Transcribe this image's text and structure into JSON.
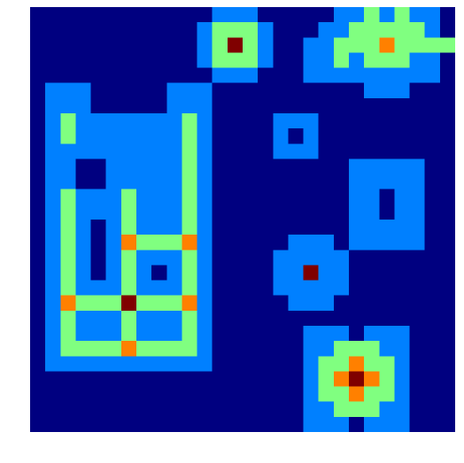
{
  "chart_data": {
    "type": "heatmap",
    "title": "",
    "xlabel": "",
    "ylabel": "",
    "colormap": "jet",
    "value_range": [
      0,
      5
    ],
    "colors": {
      "0": "#000080",
      "1": "#0080ff",
      "2": "#80ff80",
      "3": "#ff8000",
      "4": "#ff8000",
      "5": "#800000"
    },
    "grid": false,
    "axes_visible": false,
    "n_rows": 28,
    "n_cols": 28,
    "matrix": [
      [
        0,
        0,
        0,
        0,
        0,
        0,
        0,
        0,
        0,
        0,
        0,
        0,
        1,
        1,
        1,
        0,
        0,
        0,
        0,
        0,
        1,
        1,
        2,
        1,
        2,
        1,
        1,
        0
      ],
      [
        0,
        0,
        0,
        0,
        0,
        0,
        0,
        0,
        0,
        0,
        0,
        1,
        2,
        2,
        2,
        1,
        0,
        0,
        0,
        1,
        1,
        2,
        2,
        2,
        2,
        2,
        1,
        0
      ],
      [
        0,
        0,
        0,
        0,
        0,
        0,
        0,
        0,
        0,
        0,
        0,
        1,
        2,
        5,
        2,
        1,
        0,
        0,
        1,
        1,
        2,
        2,
        2,
        3,
        2,
        2,
        2,
        2
      ],
      [
        0,
        0,
        0,
        0,
        0,
        0,
        0,
        0,
        0,
        0,
        0,
        1,
        2,
        2,
        2,
        1,
        0,
        0,
        1,
        1,
        2,
        1,
        2,
        2,
        2,
        1,
        1,
        0
      ],
      [
        0,
        0,
        0,
        0,
        0,
        0,
        0,
        0,
        0,
        0,
        0,
        0,
        1,
        1,
        1,
        0,
        0,
        0,
        1,
        1,
        1,
        1,
        1,
        1,
        1,
        1,
        1,
        0
      ],
      [
        0,
        1,
        1,
        1,
        0,
        0,
        0,
        0,
        0,
        1,
        1,
        1,
        0,
        0,
        0,
        0,
        0,
        0,
        0,
        0,
        0,
        0,
        1,
        1,
        1,
        0,
        0,
        0
      ],
      [
        0,
        1,
        1,
        1,
        0,
        0,
        0,
        0,
        0,
        1,
        1,
        1,
        0,
        0,
        0,
        0,
        0,
        0,
        0,
        0,
        0,
        0,
        0,
        0,
        0,
        0,
        0,
        0
      ],
      [
        0,
        1,
        2,
        1,
        1,
        1,
        1,
        1,
        1,
        1,
        2,
        1,
        0,
        0,
        0,
        0,
        1,
        1,
        1,
        0,
        0,
        0,
        0,
        0,
        0,
        0,
        0,
        0
      ],
      [
        0,
        1,
        2,
        1,
        1,
        1,
        1,
        1,
        1,
        1,
        2,
        1,
        0,
        0,
        0,
        0,
        1,
        0,
        1,
        0,
        0,
        0,
        0,
        0,
        0,
        0,
        0,
        0
      ],
      [
        0,
        1,
        1,
        1,
        1,
        1,
        1,
        1,
        1,
        1,
        2,
        1,
        0,
        0,
        0,
        0,
        1,
        1,
        1,
        0,
        0,
        0,
        0,
        0,
        0,
        0,
        0,
        0
      ],
      [
        0,
        1,
        1,
        0,
        0,
        1,
        1,
        1,
        1,
        1,
        2,
        1,
        0,
        0,
        0,
        0,
        0,
        0,
        0,
        0,
        0,
        1,
        1,
        1,
        1,
        1,
        0,
        0
      ],
      [
        0,
        1,
        1,
        0,
        0,
        1,
        1,
        1,
        1,
        1,
        2,
        1,
        0,
        0,
        0,
        0,
        0,
        0,
        0,
        0,
        0,
        1,
        1,
        1,
        1,
        1,
        0,
        0
      ],
      [
        0,
        1,
        2,
        1,
        1,
        1,
        2,
        1,
        1,
        1,
        2,
        1,
        0,
        0,
        0,
        0,
        0,
        0,
        0,
        0,
        0,
        1,
        1,
        0,
        1,
        1,
        0,
        0
      ],
      [
        0,
        1,
        2,
        1,
        1,
        1,
        2,
        1,
        1,
        1,
        2,
        1,
        0,
        0,
        0,
        0,
        0,
        0,
        0,
        0,
        0,
        1,
        1,
        0,
        1,
        1,
        0,
        0
      ],
      [
        0,
        1,
        2,
        1,
        0,
        1,
        2,
        1,
        1,
        1,
        2,
        1,
        0,
        0,
        0,
        0,
        0,
        0,
        0,
        0,
        0,
        1,
        1,
        1,
        1,
        1,
        0,
        0
      ],
      [
        0,
        1,
        2,
        1,
        0,
        1,
        3,
        2,
        2,
        2,
        3,
        1,
        0,
        0,
        0,
        0,
        0,
        1,
        1,
        1,
        0,
        1,
        1,
        1,
        1,
        1,
        0,
        0
      ],
      [
        0,
        1,
        2,
        1,
        0,
        1,
        2,
        1,
        1,
        1,
        2,
        1,
        0,
        0,
        0,
        0,
        1,
        1,
        1,
        1,
        1,
        0,
        0,
        0,
        0,
        0,
        0,
        0
      ],
      [
        0,
        1,
        2,
        1,
        0,
        1,
        2,
        1,
        0,
        1,
        2,
        1,
        0,
        0,
        0,
        0,
        1,
        1,
        5,
        1,
        1,
        0,
        0,
        0,
        0,
        0,
        0,
        0
      ],
      [
        0,
        1,
        2,
        1,
        1,
        1,
        2,
        1,
        1,
        1,
        2,
        1,
        0,
        0,
        0,
        0,
        1,
        1,
        1,
        1,
        1,
        0,
        0,
        0,
        0,
        0,
        0,
        0
      ],
      [
        0,
        1,
        3,
        2,
        2,
        2,
        5,
        2,
        2,
        2,
        3,
        1,
        0,
        0,
        0,
        0,
        0,
        1,
        1,
        1,
        0,
        0,
        0,
        0,
        0,
        0,
        0,
        0
      ],
      [
        0,
        1,
        2,
        1,
        1,
        1,
        2,
        1,
        1,
        1,
        2,
        1,
        0,
        0,
        0,
        0,
        0,
        0,
        0,
        0,
        0,
        0,
        0,
        0,
        0,
        0,
        0,
        0
      ],
      [
        0,
        1,
        2,
        1,
        1,
        1,
        2,
        1,
        1,
        1,
        2,
        1,
        0,
        0,
        0,
        0,
        0,
        0,
        1,
        1,
        1,
        0,
        1,
        1,
        1,
        0,
        0,
        0
      ],
      [
        0,
        1,
        2,
        2,
        2,
        2,
        3,
        2,
        2,
        2,
        2,
        1,
        0,
        0,
        0,
        0,
        0,
        0,
        1,
        1,
        2,
        2,
        2,
        1,
        1,
        0,
        0,
        0
      ],
      [
        0,
        1,
        1,
        1,
        1,
        1,
        1,
        1,
        1,
        1,
        1,
        1,
        0,
        0,
        0,
        0,
        0,
        0,
        1,
        2,
        2,
        3,
        2,
        2,
        1,
        0,
        0,
        0
      ],
      [
        0,
        0,
        0,
        0,
        0,
        0,
        0,
        0,
        0,
        0,
        0,
        0,
        0,
        0,
        0,
        0,
        0,
        0,
        1,
        2,
        3,
        5,
        3,
        2,
        1,
        0,
        0,
        0
      ],
      [
        0,
        0,
        0,
        0,
        0,
        0,
        0,
        0,
        0,
        0,
        0,
        0,
        0,
        0,
        0,
        0,
        0,
        0,
        1,
        2,
        2,
        3,
        2,
        2,
        1,
        0,
        0,
        0
      ],
      [
        0,
        0,
        0,
        0,
        0,
        0,
        0,
        0,
        0,
        0,
        0,
        0,
        0,
        0,
        0,
        0,
        0,
        0,
        1,
        1,
        2,
        2,
        2,
        1,
        1,
        0,
        0,
        0
      ],
      [
        0,
        0,
        0,
        0,
        0,
        0,
        0,
        0,
        0,
        0,
        0,
        0,
        0,
        0,
        0,
        0,
        0,
        0,
        1,
        1,
        1,
        0,
        1,
        1,
        1,
        0,
        0,
        0
      ]
    ]
  }
}
